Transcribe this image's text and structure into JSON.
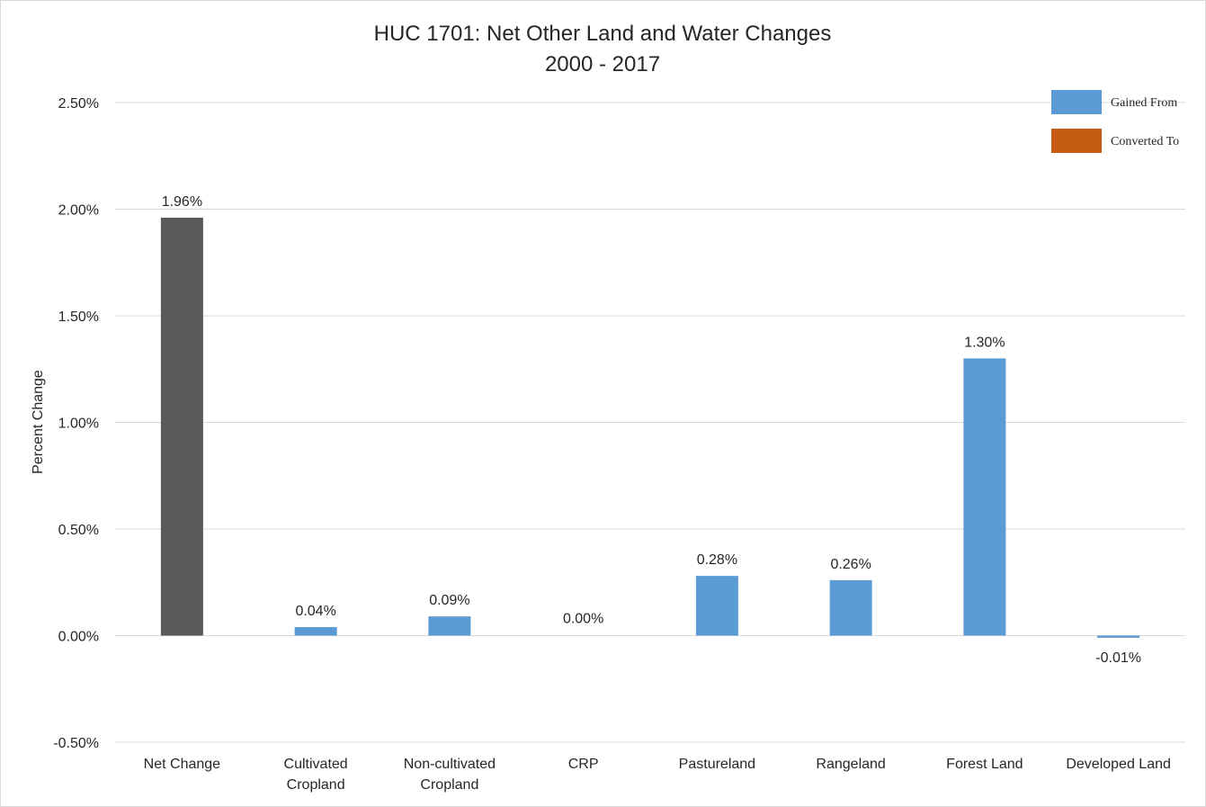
{
  "chart_data": {
    "type": "bar",
    "title": "HUC 1701: Net Other Land and Water Changes",
    "subtitle": "2000 - 2017",
    "xlabel": "",
    "ylabel": "Percent Change",
    "ylim": [
      -0.5,
      2.5
    ],
    "y_ticks": [
      "-0.50%",
      "0.00%",
      "0.50%",
      "1.00%",
      "1.50%",
      "2.00%",
      "2.50%"
    ],
    "y_tick_values": [
      -0.5,
      0,
      0.5,
      1.0,
      1.5,
      2.0,
      2.5
    ],
    "grid": true,
    "legend_position": "top-right",
    "categories": [
      [
        "Net Change"
      ],
      [
        "Cultivated",
        "Cropland"
      ],
      [
        "Non-cultivated",
        "Cropland"
      ],
      [
        "CRP"
      ],
      [
        "Pastureland"
      ],
      [
        "Rangeland"
      ],
      [
        "Forest Land"
      ],
      [
        "Developed Land"
      ]
    ],
    "values": [
      1.96,
      0.04,
      0.09,
      0.0,
      0.28,
      0.26,
      1.3,
      -0.01
    ],
    "data_labels": [
      "1.96%",
      "0.04%",
      "0.09%",
      "0.00%",
      "0.28%",
      "0.26%",
      "1.30%",
      "-0.01%"
    ],
    "bar_colors": [
      "#595959",
      "#5b9bd5",
      "#5b9bd5",
      "#5b9bd5",
      "#5b9bd5",
      "#5b9bd5",
      "#5b9bd5",
      "#5b9bd5"
    ],
    "legend": [
      {
        "name": "Gained From",
        "color": "#5b9bd5"
      },
      {
        "name": "Converted To",
        "color": "#c55a11"
      }
    ]
  }
}
